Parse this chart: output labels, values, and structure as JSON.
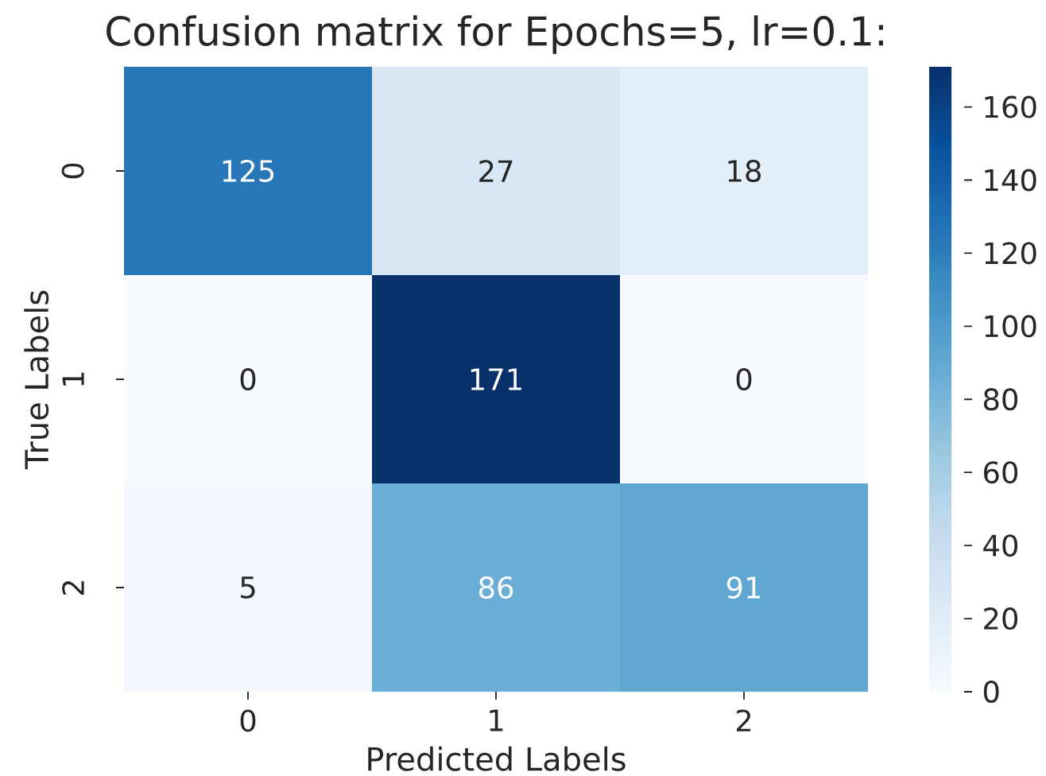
{
  "chart_data": {
    "type": "heatmap",
    "title": "Confusion matrix for Epochs=5, lr=0.1:",
    "xlabel": "Predicted Labels",
    "ylabel": "True Labels",
    "categories": [
      "0",
      "1",
      "2"
    ],
    "y_categories": [
      "0",
      "1",
      "2"
    ],
    "cells": [
      [
        125,
        27,
        18
      ],
      [
        0,
        171,
        0
      ],
      [
        5,
        86,
        91
      ]
    ],
    "clim": [
      0,
      171
    ],
    "cticks": [
      0,
      20,
      40,
      60,
      80,
      100,
      120,
      140,
      160
    ],
    "data_labels": true
  }
}
